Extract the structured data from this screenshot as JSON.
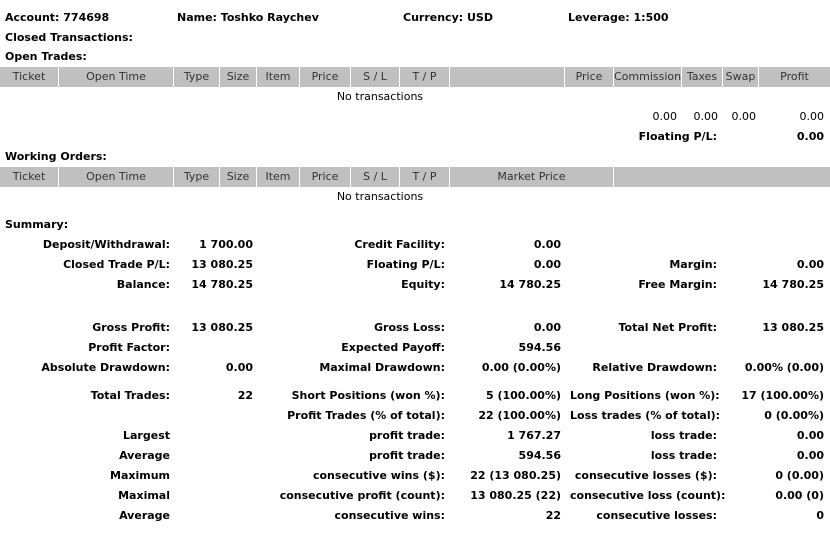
{
  "header": {
    "account": "Account: 774698",
    "name": "Name: Toshko Raychev",
    "currency": "Currency: USD",
    "leverage": "Leverage: 1:500"
  },
  "closed_transactions_label": "Closed Transactions:",
  "open_trades": {
    "title": "Open Trades:",
    "columns": [
      "Ticket",
      "Open Time",
      "Type",
      "Size",
      "Item",
      "Price",
      "S / L",
      "T / P",
      "",
      "Price",
      "Commission",
      "Taxes",
      "Swap",
      "Profit"
    ],
    "empty_message": "No transactions",
    "totals": {
      "commission": "0.00",
      "taxes": "0.00",
      "swap": "0.00",
      "profit": "0.00"
    },
    "floating_label": "Floating P/L:",
    "floating_value": "0.00"
  },
  "working_orders": {
    "title": "Working Orders:",
    "columns": [
      "Ticket",
      "Open Time",
      "Type",
      "Size",
      "Item",
      "Price",
      "S / L",
      "T / P",
      "Market Price",
      ""
    ],
    "empty_message": "No transactions"
  },
  "summary": {
    "title": "Summary:",
    "rows": [
      [
        "Deposit/Withdrawal:",
        "1 700.00",
        "Credit Facility:",
        "0.00",
        "",
        ""
      ],
      [
        "Closed Trade P/L:",
        "13 080.25",
        "Floating P/L:",
        "0.00",
        "Margin:",
        "0.00"
      ],
      [
        "Balance:",
        "14 780.25",
        "Equity:",
        "14 780.25",
        "Free Margin:",
        "14 780.25"
      ],
      [
        "Gross Profit:",
        "13 080.25",
        "Gross Loss:",
        "0.00",
        "Total Net Profit:",
        "13 080.25"
      ],
      [
        "Profit Factor:",
        "",
        "Expected Payoff:",
        "594.56",
        "",
        ""
      ],
      [
        "Absolute Drawdown:",
        "0.00",
        "Maximal Drawdown:",
        "0.00 (0.00%)",
        "Relative Drawdown:",
        "0.00% (0.00)"
      ],
      [
        "Total Trades:",
        "22",
        "Short Positions (won %):",
        "5 (100.00%)",
        "Long Positions (won %):",
        "17 (100.00%)"
      ],
      [
        "",
        "",
        "Profit Trades (% of total):",
        "22 (100.00%)",
        "Loss trades (% of total):",
        "0 (0.00%)"
      ],
      [
        "Largest",
        "",
        "profit trade:",
        "1 767.27",
        "loss trade:",
        "0.00"
      ],
      [
        "Average",
        "",
        "profit trade:",
        "594.56",
        "loss trade:",
        "0.00"
      ],
      [
        "Maximum",
        "",
        "consecutive wins ($):",
        "22 (13 080.25)",
        "consecutive losses ($):",
        "0 (0.00)"
      ],
      [
        "Maximal",
        "",
        "consecutive profit (count):",
        "13 080.25 (22)",
        "consecutive loss (count):",
        "0.00 (0)"
      ],
      [
        "Average",
        "",
        "consecutive wins:",
        "22",
        "consecutive losses:",
        "0"
      ]
    ]
  }
}
